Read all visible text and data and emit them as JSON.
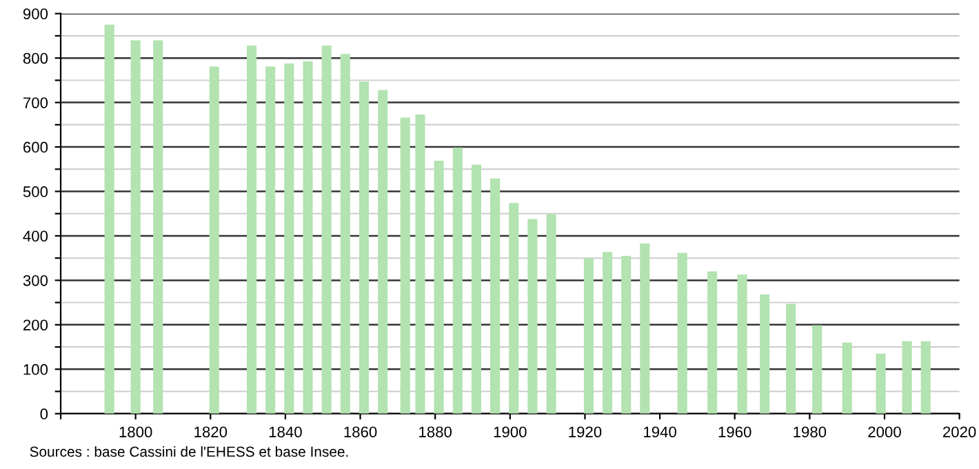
{
  "chart_data": {
    "type": "bar",
    "x": [
      1793,
      1800,
      1806,
      1821,
      1831,
      1836,
      1841,
      1846,
      1851,
      1856,
      1861,
      1866,
      1872,
      1876,
      1881,
      1886,
      1891,
      1896,
      1901,
      1906,
      1911,
      1921,
      1926,
      1931,
      1936,
      1946,
      1954,
      1962,
      1968,
      1975,
      1982,
      1990,
      1999,
      2006,
      2011
    ],
    "values": [
      875,
      840,
      840,
      781,
      828,
      781,
      788,
      793,
      828,
      809,
      747,
      728,
      666,
      673,
      569,
      599,
      560,
      529,
      474,
      438,
      449,
      350,
      364,
      355,
      383,
      362,
      320,
      313,
      268,
      247,
      199,
      160,
      135,
      163,
      163
    ],
    "color": "#b3e3b0",
    "xlim": [
      1780,
      2020
    ],
    "xticks": [
      {
        "value": 1780,
        "label": null
      },
      1800,
      1820,
      1840,
      1860,
      1880,
      1900,
      1920,
      1940,
      1960,
      1980,
      2000,
      2020
    ],
    "ylim": [
      0,
      900
    ],
    "yticks": [
      0,
      {
        "value": 50,
        "label": null
      },
      100,
      {
        "value": 150,
        "label": null
      },
      200,
      {
        "value": 250,
        "label": null
      },
      300,
      {
        "value": 350,
        "label": null
      },
      400,
      {
        "value": 450,
        "label": null
      },
      500,
      {
        "value": 550,
        "label": null
      },
      600,
      {
        "value": 650,
        "label": null
      },
      700,
      {
        "value": 750,
        "label": null
      },
      800,
      {
        "value": 850,
        "label": null
      },
      900
    ],
    "grid": "y",
    "annotations": [
      "Sources : base Cassini de l'EHESS et base Insee."
    ]
  }
}
